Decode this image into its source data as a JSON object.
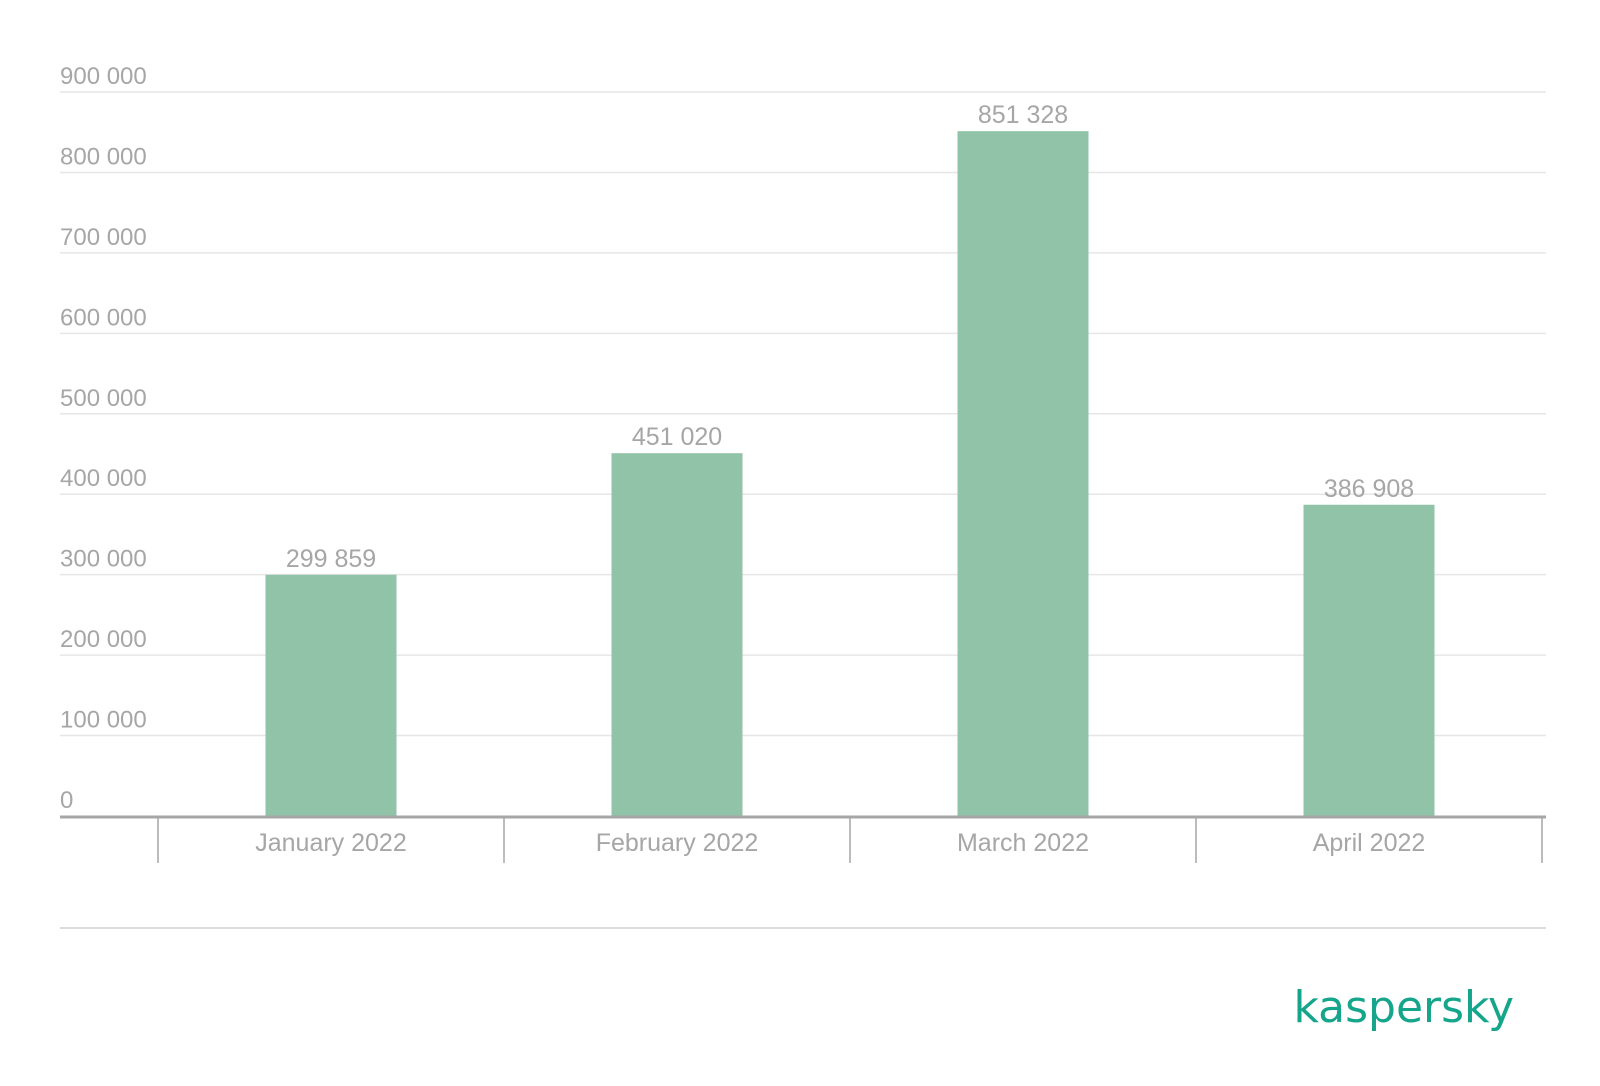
{
  "chart_data": {
    "type": "bar",
    "categories": [
      "January 2022",
      "February 2022",
      "March 2022",
      "April 2022"
    ],
    "values": [
      299859,
      451020,
      851328,
      386908
    ],
    "value_labels": [
      "299 859",
      "451 020",
      "851 328",
      "386 908"
    ],
    "ylim": [
      0,
      900000
    ],
    "yticks": [
      0,
      100000,
      200000,
      300000,
      400000,
      500000,
      600000,
      700000,
      800000,
      900000
    ],
    "ytick_labels": [
      "0",
      "100 000",
      "200 000",
      "300 000",
      "400 000",
      "500 000",
      "600 000",
      "700 000",
      "800 000",
      "900 000"
    ],
    "grid": true,
    "title": "",
    "xlabel": "",
    "ylabel": ""
  },
  "colors": {
    "bar": "#91c3a8",
    "grid": "#e6e6e6",
    "axis": "#a6a6a6",
    "text": "#a6a6a6",
    "brand": "#14a58b"
  },
  "brand": {
    "logo_text": "kaspersky"
  }
}
